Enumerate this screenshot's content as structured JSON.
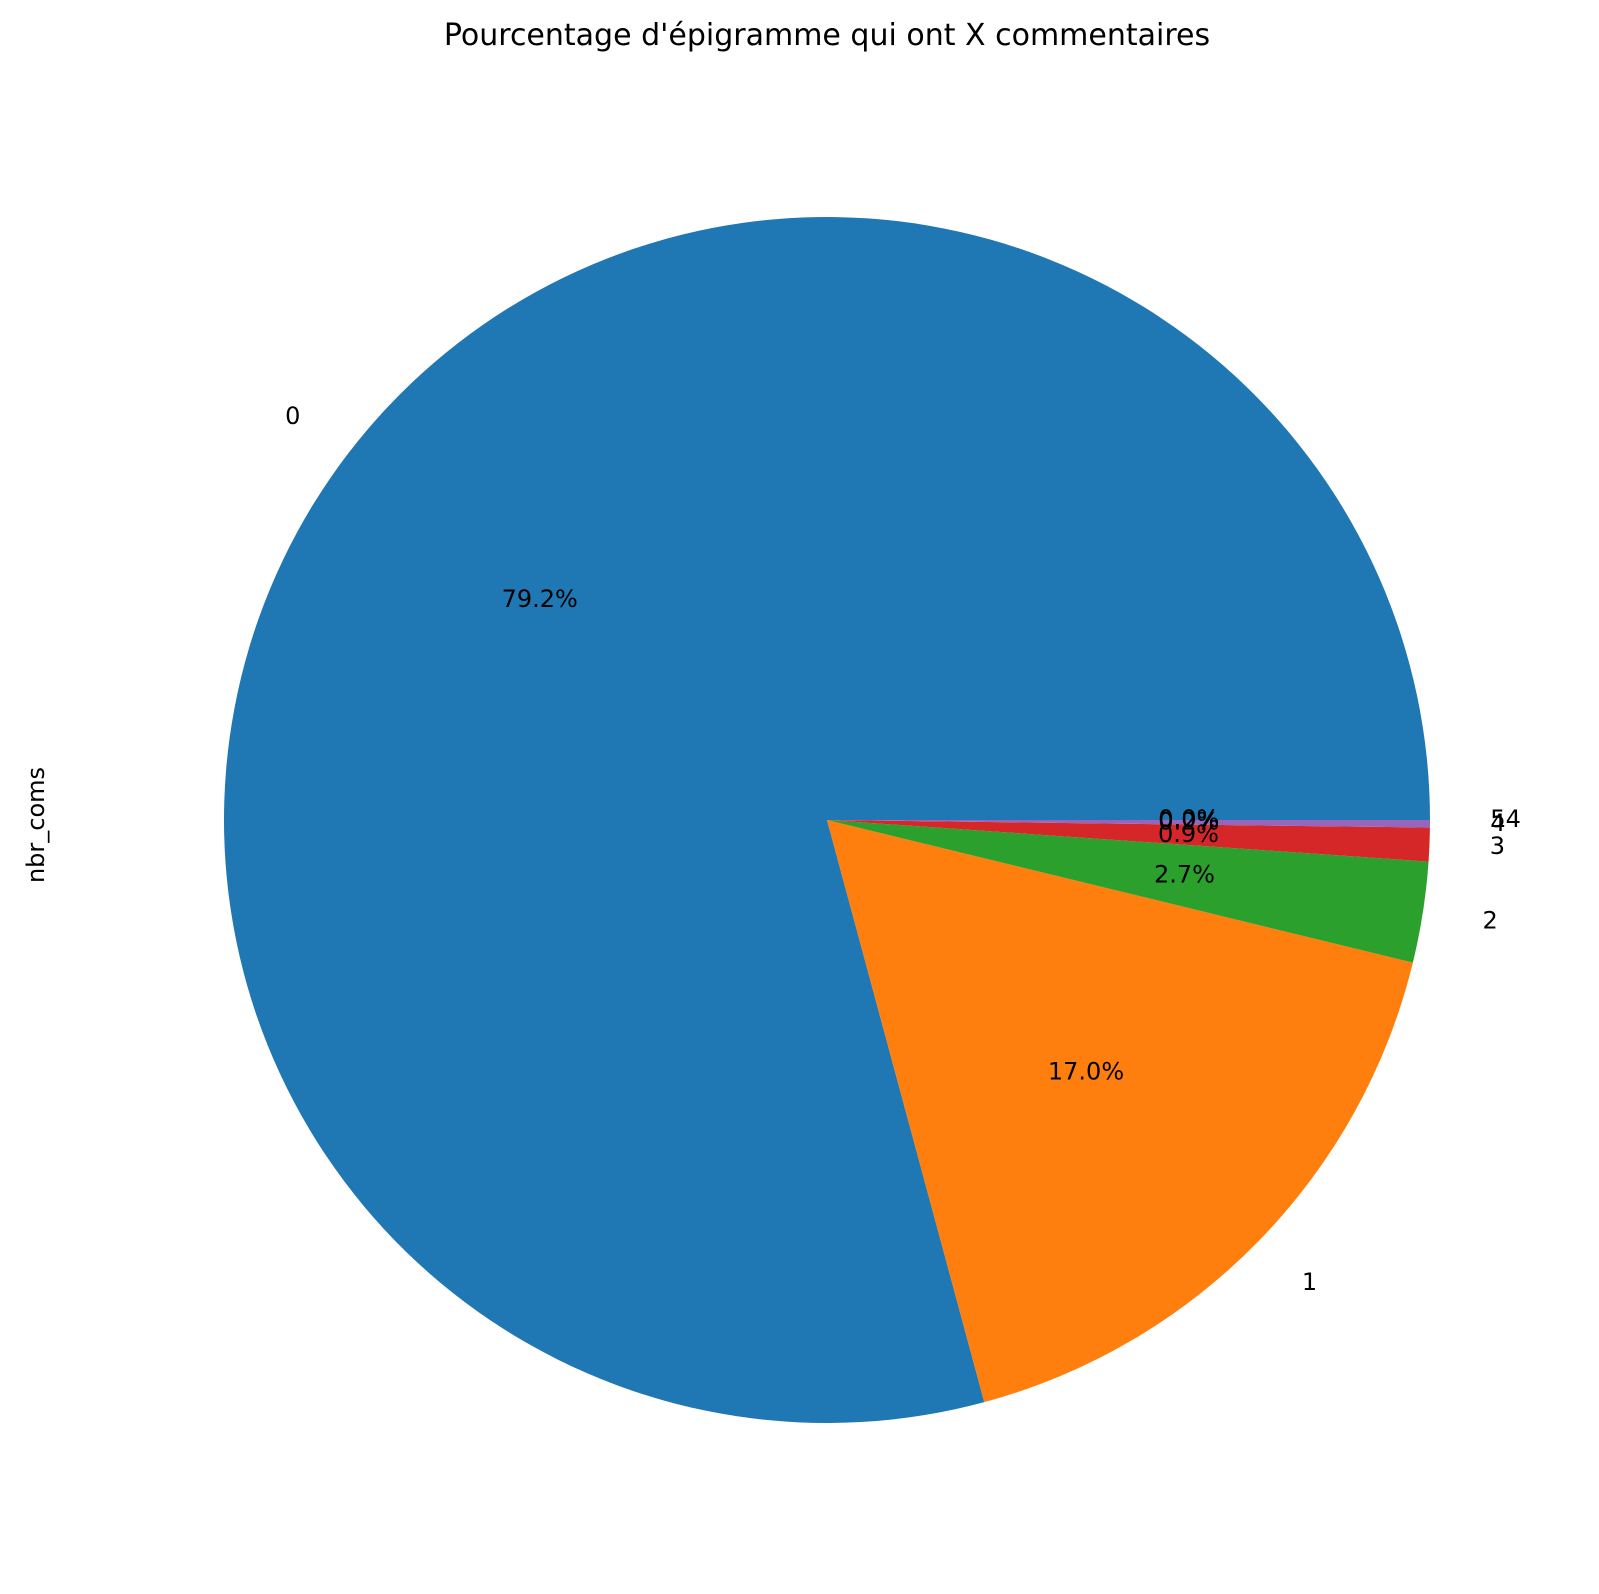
{
  "chart_data": {
    "type": "pie",
    "title": "Pourcentage d'épigramme qui ont X commentaires",
    "ylabel": "nbr_coms",
    "start_angle": "0°, counter-clockwise",
    "slices": [
      {
        "label": "0",
        "value": 79.2,
        "pct_label": "79.2%",
        "color": "#1f77b4"
      },
      {
        "label": "1",
        "value": 17.0,
        "pct_label": "17.0%",
        "color": "#ff7f0e"
      },
      {
        "label": "2",
        "value": 2.7,
        "pct_label": "2.7%",
        "color": "#2ca02c"
      },
      {
        "label": "3",
        "value": 0.9,
        "pct_label": "0.9%",
        "color": "#d62728"
      },
      {
        "label": "4",
        "value": 0.2,
        "pct_label": "0.2%",
        "color": "#9467bd"
      },
      {
        "label": "5",
        "value": 0.0,
        "pct_label": "0.0%",
        "color": "#8c564b"
      },
      {
        "label": "54",
        "value": 0.0,
        "pct_label": "0.0%",
        "color": "#e377c2"
      }
    ]
  }
}
